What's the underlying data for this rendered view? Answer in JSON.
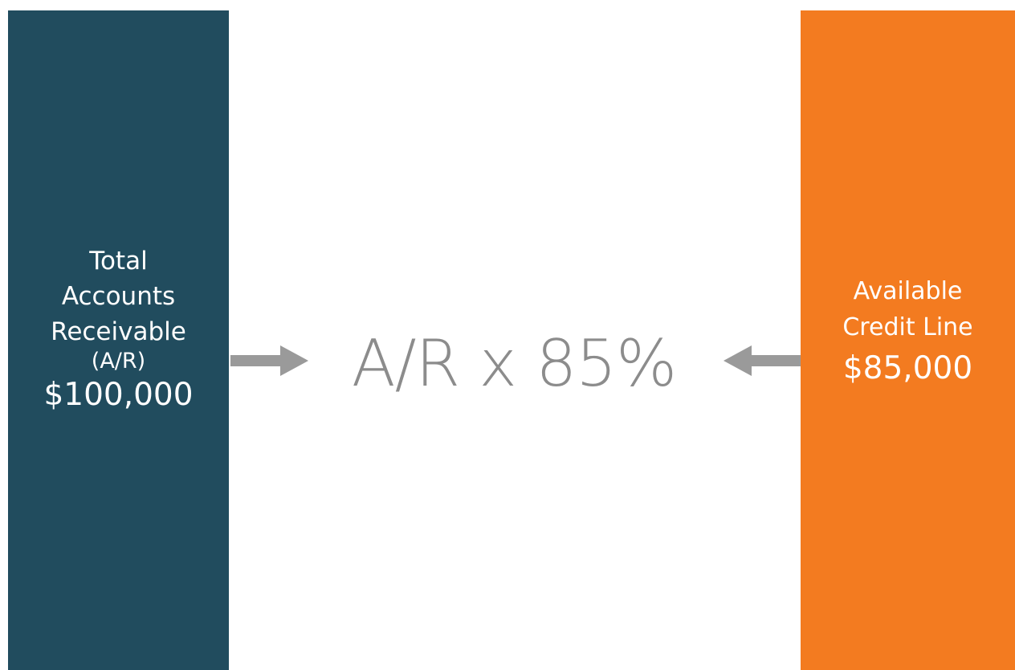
{
  "colors": {
    "left_box": "#214c5e",
    "right_box": "#f37b20",
    "formula_text": "#8c8c8c",
    "arrow": "#9a9a9a",
    "box_text": "#ffffff"
  },
  "left_box": {
    "lines": [
      "Total",
      "Accounts",
      "Receivable",
      "(A/R)"
    ],
    "amount": "$100,000"
  },
  "formula": "A/R x 85%",
  "right_box": {
    "lines": [
      "Available",
      "Credit Line"
    ],
    "amount": "$85,000"
  },
  "icons": {
    "left_arrow": "arrow-right-icon",
    "right_arrow": "arrow-left-icon"
  }
}
